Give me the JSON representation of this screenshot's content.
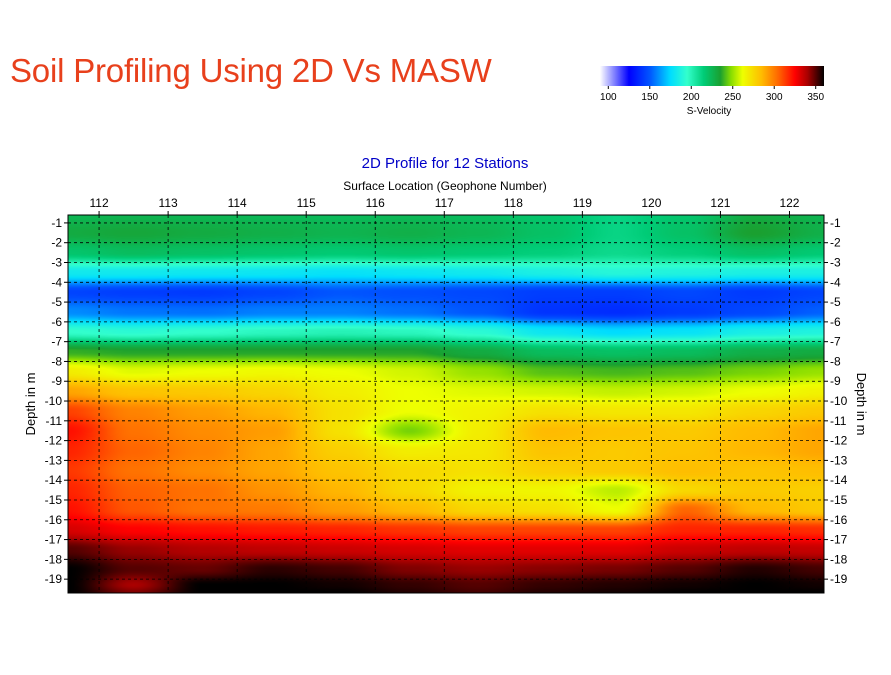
{
  "title": "Soil Profiling Using 2D Vs MASW",
  "colors": {
    "title": "#e8401c",
    "plot_title": "#0000c8",
    "text": "#000000"
  },
  "colorbar": {
    "label": "S-Velocity",
    "ticks": [
      100,
      150,
      200,
      250,
      300,
      350
    ],
    "range": [
      90,
      360
    ],
    "stops": [
      {
        "v": 90,
        "color": "#ffffff"
      },
      {
        "v": 125,
        "color": "#0000ff"
      },
      {
        "v": 150,
        "color": "#0055ff"
      },
      {
        "v": 175,
        "color": "#00ddff"
      },
      {
        "v": 195,
        "color": "#33ffcc"
      },
      {
        "v": 215,
        "color": "#00cc77"
      },
      {
        "v": 235,
        "color": "#1aa030"
      },
      {
        "v": 248,
        "color": "#88dd00"
      },
      {
        "v": 262,
        "color": "#eeff00"
      },
      {
        "v": 285,
        "color": "#ffbb00"
      },
      {
        "v": 305,
        "color": "#ff6600"
      },
      {
        "v": 325,
        "color": "#ff0000"
      },
      {
        "v": 340,
        "color": "#aa0000"
      },
      {
        "v": 360,
        "color": "#000000"
      }
    ]
  },
  "chart_data": {
    "type": "heatmap",
    "title": "2D Profile for 12 Stations",
    "xlabel": "Surface Location (Geophone Number)",
    "ylabel": "Depth in m",
    "ylabel_right": "Depth in m",
    "x_ticks": [
      112,
      113,
      114,
      115,
      116,
      117,
      118,
      119,
      120,
      121,
      122
    ],
    "y_ticks": [
      -1,
      -2,
      -3,
      -4,
      -5,
      -6,
      -7,
      -8,
      -9,
      -10,
      -11,
      -12,
      -13,
      -14,
      -15,
      -16,
      -17,
      -18,
      -19
    ],
    "xlim": [
      111.55,
      122.5
    ],
    "ylim": [
      -0.6,
      -19.7
    ],
    "grid": true,
    "value_name": "S-Velocity",
    "x": [
      111.55,
      112.5,
      113.5,
      114.5,
      115.5,
      116.5,
      117.5,
      118.5,
      119.5,
      120.5,
      121.5,
      122.5
    ],
    "depth": [
      -0.6,
      -1.5,
      -2.5,
      -3.5,
      -4.5,
      -5.5,
      -6.5,
      -7.5,
      -8.5,
      -9.5,
      -10.5,
      -11.5,
      -12.5,
      -13.5,
      -14.5,
      -15.5,
      -16.5,
      -17.5,
      -18.5,
      -19.3,
      -19.7
    ],
    "values": [
      [
        225,
        226,
        225,
        224,
        223,
        224,
        222,
        218,
        212,
        218,
        230,
        226
      ],
      [
        230,
        232,
        230,
        228,
        226,
        228,
        225,
        220,
        212,
        220,
        235,
        228
      ],
      [
        218,
        222,
        220,
        218,
        216,
        218,
        216,
        214,
        210,
        214,
        220,
        216
      ],
      [
        182,
        182,
        181,
        180,
        178,
        180,
        182,
        186,
        190,
        188,
        186,
        186
      ],
      [
        145,
        143,
        142,
        145,
        150,
        148,
        146,
        143,
        143,
        146,
        142,
        145
      ],
      [
        160,
        156,
        155,
        158,
        158,
        155,
        150,
        140,
        138,
        142,
        146,
        152
      ],
      [
        195,
        192,
        195,
        198,
        200,
        198,
        192,
        180,
        175,
        178,
        185,
        188
      ],
      [
        238,
        236,
        236,
        236,
        236,
        236,
        230,
        222,
        220,
        222,
        228,
        230
      ],
      [
        268,
        260,
        262,
        264,
        262,
        258,
        250,
        242,
        240,
        242,
        246,
        250
      ],
      [
        290,
        282,
        280,
        276,
        268,
        262,
        260,
        258,
        256,
        258,
        262,
        266
      ],
      [
        312,
        298,
        292,
        286,
        272,
        262,
        266,
        272,
        270,
        270,
        276,
        280
      ],
      [
        322,
        302,
        296,
        292,
        272,
        246,
        268,
        285,
        282,
        280,
        285,
        290
      ],
      [
        318,
        305,
        298,
        290,
        278,
        268,
        270,
        282,
        280,
        282,
        286,
        290
      ],
      [
        314,
        302,
        296,
        290,
        282,
        275,
        272,
        278,
        280,
        284,
        282,
        284
      ],
      [
        318,
        306,
        302,
        294,
        286,
        275,
        266,
        265,
        255,
        275,
        280,
        278
      ],
      [
        322,
        308,
        302,
        300,
        292,
        285,
        275,
        272,
        262,
        305,
        285,
        280
      ],
      [
        332,
        325,
        322,
        320,
        318,
        315,
        312,
        312,
        312,
        318,
        318,
        316
      ],
      [
        350,
        342,
        338,
        336,
        334,
        332,
        330,
        330,
        330,
        334,
        336,
        335
      ],
      [
        360,
        350,
        348,
        355,
        352,
        345,
        342,
        344,
        346,
        350,
        356,
        352
      ],
      [
        360,
        340,
        360,
        360,
        358,
        354,
        350,
        354,
        356,
        358,
        360,
        358
      ],
      [
        360,
        345,
        360,
        360,
        360,
        356,
        352,
        356,
        358,
        360,
        360,
        360
      ]
    ]
  }
}
